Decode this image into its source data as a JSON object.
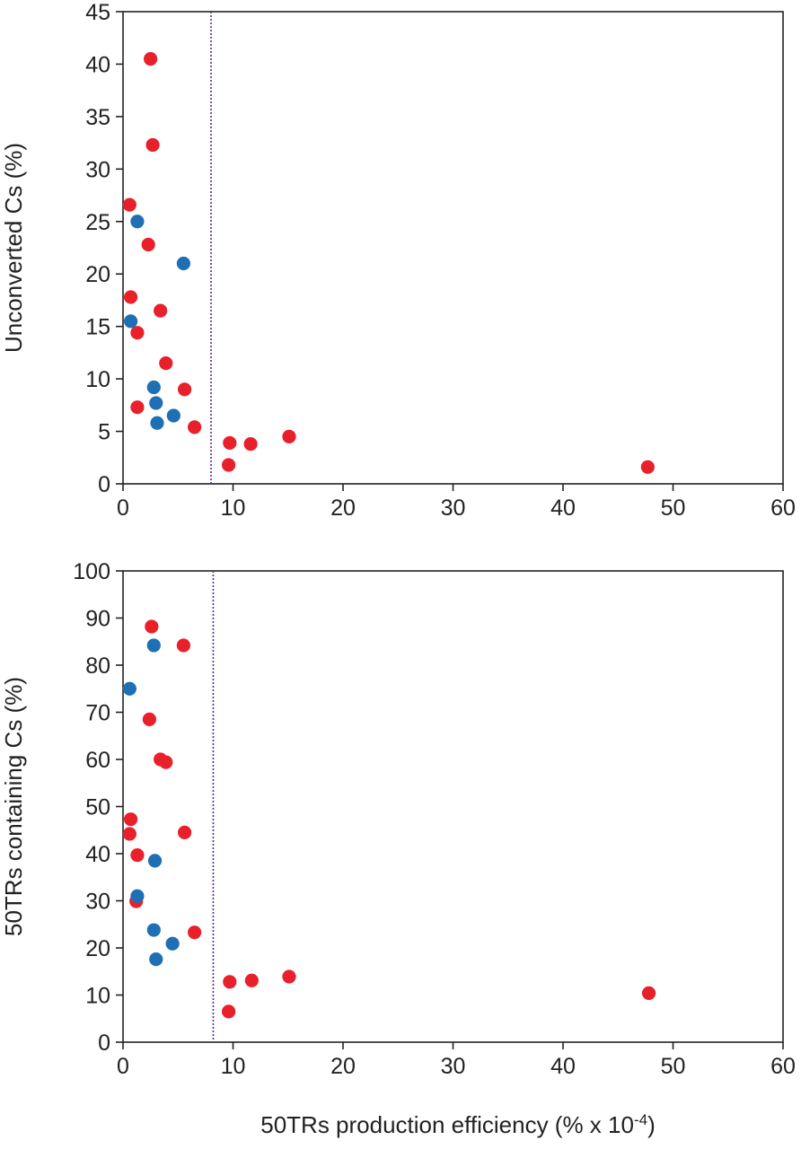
{
  "chart_data": [
    {
      "type": "scatter",
      "title": "",
      "xlabel": "",
      "ylabel": "Unconverted Cs (%)",
      "xlim": [
        0,
        60
      ],
      "ylim": [
        0,
        45
      ],
      "xticks": [
        "0",
        "10",
        "20",
        "30",
        "40",
        "50",
        "60"
      ],
      "yticks": [
        "0",
        "5",
        "10",
        "15",
        "20",
        "25",
        "30",
        "35",
        "40",
        "45"
      ],
      "grid": false,
      "threshold_x": 8,
      "series": [
        {
          "color": "#e8202a",
          "points": [
            [
              2.5,
              40.5
            ],
            [
              2.7,
              32.3
            ],
            [
              0.6,
              26.6
            ],
            [
              2.3,
              22.8
            ],
            [
              0.7,
              17.8
            ],
            [
              3.4,
              16.5
            ],
            [
              1.3,
              14.4
            ],
            [
              3.9,
              11.5
            ],
            [
              5.6,
              9.0
            ],
            [
              1.3,
              7.3
            ],
            [
              6.5,
              5.4
            ],
            [
              9.7,
              3.9
            ],
            [
              11.6,
              3.8
            ],
            [
              15.1,
              4.5
            ],
            [
              9.6,
              1.8
            ],
            [
              47.7,
              1.6
            ]
          ]
        },
        {
          "color": "#1f6fb5",
          "points": [
            [
              1.3,
              25.0
            ],
            [
              5.5,
              21.0
            ],
            [
              0.7,
              15.5
            ],
            [
              2.8,
              9.2
            ],
            [
              3.0,
              7.7
            ],
            [
              3.1,
              5.8
            ],
            [
              4.6,
              6.5
            ]
          ]
        }
      ]
    },
    {
      "type": "scatter",
      "title": "",
      "xlabel": "50TRs production efficiency (% x 10",
      "xlabel_superscript": "-4",
      "xlabel_suffix": ")",
      "ylabel": "50TRs containing Cs (%)",
      "xlim": [
        0,
        60
      ],
      "ylim": [
        0,
        100
      ],
      "xticks": [
        "0",
        "10",
        "20",
        "30",
        "40",
        "50",
        "60"
      ],
      "yticks": [
        "0",
        "10",
        "20",
        "30",
        "40",
        "50",
        "60",
        "70",
        "80",
        "90",
        "100"
      ],
      "grid": false,
      "threshold_x": 8.2,
      "series": [
        {
          "color": "#e8202a",
          "points": [
            [
              2.6,
              88.2
            ],
            [
              5.5,
              84.2
            ],
            [
              2.4,
              68.5
            ],
            [
              3.4,
              60.0
            ],
            [
              3.9,
              59.4
            ],
            [
              0.7,
              47.3
            ],
            [
              0.6,
              44.2
            ],
            [
              5.6,
              44.5
            ],
            [
              1.3,
              39.7
            ],
            [
              1.2,
              29.9
            ],
            [
              6.5,
              23.3
            ],
            [
              9.7,
              12.8
            ],
            [
              11.7,
              13.1
            ],
            [
              15.1,
              13.9
            ],
            [
              9.6,
              6.5
            ],
            [
              47.8,
              10.4
            ]
          ]
        },
        {
          "color": "#1f6fb5",
          "points": [
            [
              2.8,
              84.2
            ],
            [
              0.6,
              75.0
            ],
            [
              2.9,
              38.5
            ],
            [
              1.3,
              31.0
            ],
            [
              2.8,
              23.8
            ],
            [
              4.5,
              20.9
            ],
            [
              3.0,
              17.6
            ]
          ]
        }
      ]
    }
  ]
}
